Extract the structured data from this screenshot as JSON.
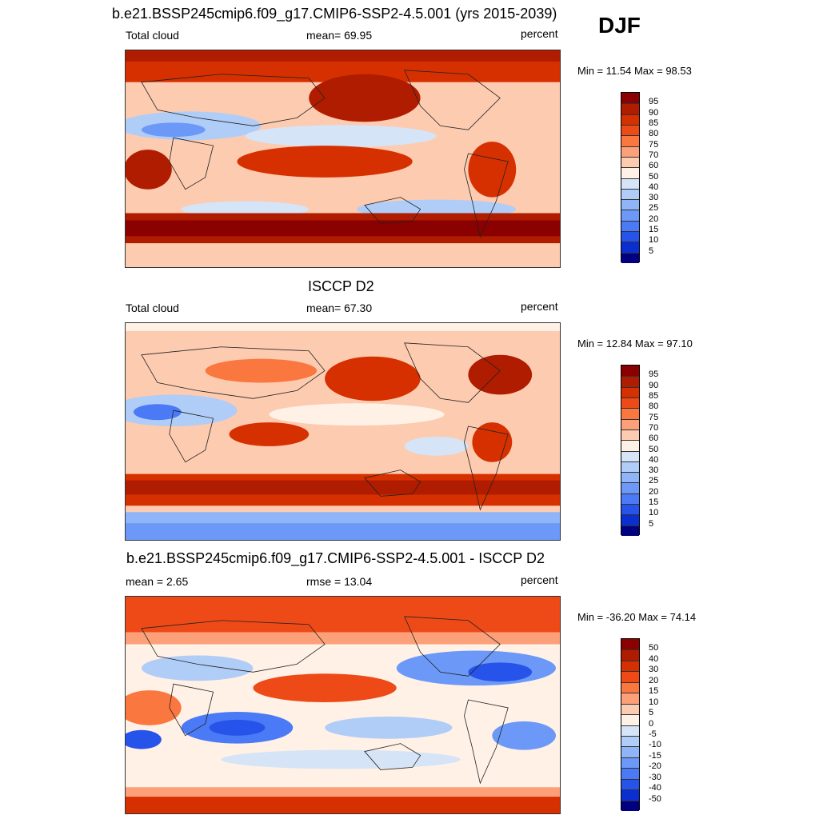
{
  "figure": {
    "title": "b.e21.BSSP245cmip6.f09_g17.CMIP6-SSP2-4.5.001 (yrs 2015-2039)",
    "season": "DJF"
  },
  "chart_data": [
    {
      "type": "heatmap",
      "title": "b.e21.BSSP245cmip6.f09_g17.CMIP6-SSP2-4.5.001 (yrs 2015-2039)",
      "left_label": "Total cloud",
      "center_label": "mean=  69.95",
      "units": "percent",
      "min_max": "Min =  11.54 Max =  98.53",
      "levels": [
        "95",
        "90",
        "85",
        "80",
        "75",
        "70",
        "60",
        "50",
        "40",
        "30",
        "25",
        "20",
        "15",
        "10",
        "5"
      ],
      "colors": [
        "#8b0000",
        "#b01c00",
        "#d63000",
        "#ee4a18",
        "#fa7840",
        "#fca07a",
        "#fdcbb0",
        "#fff1e6",
        "#d5e4f7",
        "#b0cdf7",
        "#8fb4f8",
        "#6c99f7",
        "#4a7af6",
        "#2653e9",
        "#0b2ed1",
        "#000080"
      ]
    },
    {
      "type": "heatmap",
      "title": "ISCCP D2",
      "left_label": "Total cloud",
      "center_label": "mean=  67.30",
      "units": "percent",
      "min_max": "Min =  12.84 Max =  97.10",
      "levels": [
        "95",
        "90",
        "85",
        "80",
        "75",
        "70",
        "60",
        "50",
        "40",
        "30",
        "25",
        "20",
        "15",
        "10",
        "5"
      ],
      "colors": [
        "#8b0000",
        "#b01c00",
        "#d63000",
        "#ee4a18",
        "#fa7840",
        "#fca07a",
        "#fdcbb0",
        "#fff1e6",
        "#d5e4f7",
        "#b0cdf7",
        "#8fb4f8",
        "#6c99f7",
        "#4a7af6",
        "#2653e9",
        "#0b2ed1",
        "#000080"
      ]
    },
    {
      "type": "heatmap",
      "title": "b.e21.BSSP245cmip6.f09_g17.CMIP6-SSP2-4.5.001 - ISCCP D2",
      "left_label": "mean =   2.65",
      "center_label": "rmse =  13.04",
      "units": "percent",
      "min_max": "Min = -36.20 Max =  74.14",
      "levels": [
        "50",
        "40",
        "30",
        "20",
        "15",
        "10",
        "5",
        "0",
        "-5",
        "-10",
        "-15",
        "-20",
        "-30",
        "-40",
        "-50"
      ],
      "colors": [
        "#8b0000",
        "#b01c00",
        "#d63000",
        "#ee4a18",
        "#fa7840",
        "#fca07a",
        "#fdcbb0",
        "#fff1e6",
        "#d5e4f7",
        "#b0cdf7",
        "#8fb4f8",
        "#6c99f7",
        "#4a7af6",
        "#2653e9",
        "#0b2ed1",
        "#000080"
      ]
    }
  ]
}
